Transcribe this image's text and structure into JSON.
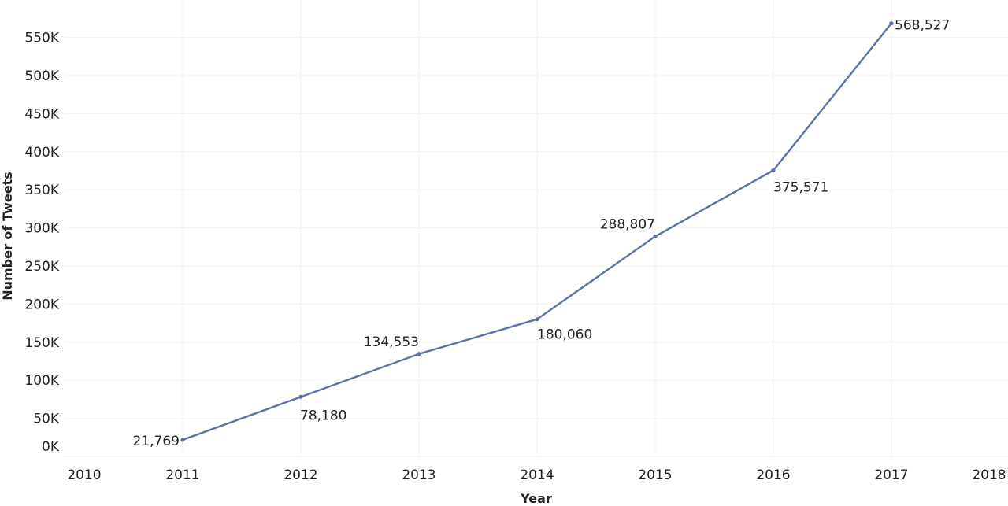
{
  "chart_data": {
    "type": "line",
    "title": "",
    "xlabel": "Year",
    "ylabel": "Number of Tweets",
    "x": [
      2011,
      2012,
      2013,
      2014,
      2015,
      2016,
      2017
    ],
    "series": [
      {
        "name": "Number of Tweets",
        "color": "#5b74a4",
        "values": [
          21769,
          78180,
          134553,
          180060,
          288807,
          375571,
          568527
        ],
        "labels": [
          "21,769",
          "78,180",
          "134,553",
          "180,060",
          "288,807",
          "375,571",
          "568,527"
        ]
      }
    ],
    "x_ticks": [
      "2010",
      "2011",
      "2012",
      "2013",
      "2014",
      "2015",
      "2016",
      "2017",
      "2018"
    ],
    "y_ticks": [
      "0K",
      "50K",
      "100K",
      "150K",
      "200K",
      "250K",
      "300K",
      "350K",
      "400K",
      "450K",
      "500K",
      "550K"
    ],
    "xlim": [
      2010,
      2018
    ],
    "ylim": [
      0,
      580000
    ],
    "grid": true,
    "legend": null
  }
}
